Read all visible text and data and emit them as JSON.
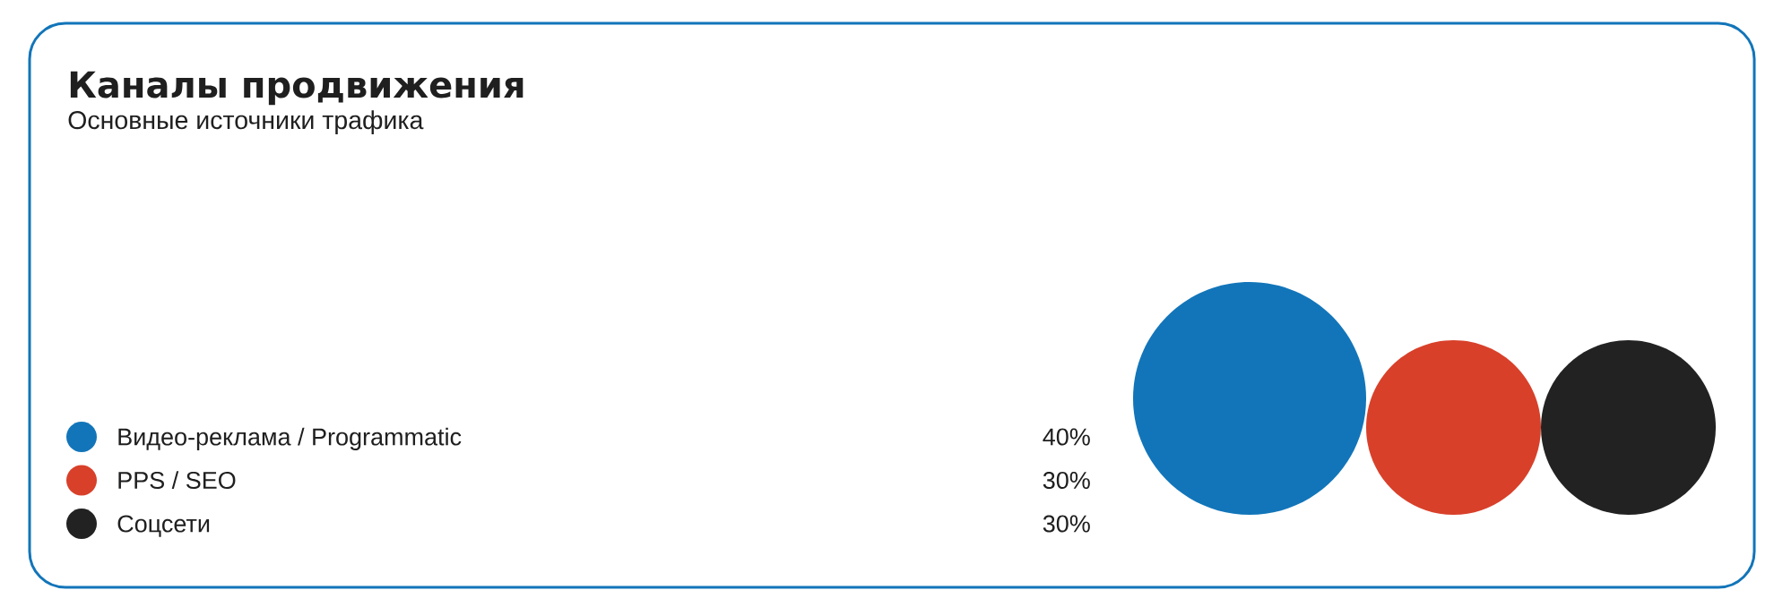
{
  "chart_data": {
    "type": "other",
    "title": "Каналы продвижения",
    "subtitle": "Основные источники трафика",
    "categories": [
      "Видео-реклама / Programmatic",
      "PPS / SEO",
      "Соцсети"
    ],
    "values": [
      40,
      30,
      30
    ],
    "colors": [
      "#1275b9",
      "#d8402a",
      "#222222"
    ],
    "value_labels": [
      "40%",
      "30%",
      "30%"
    ]
  }
}
